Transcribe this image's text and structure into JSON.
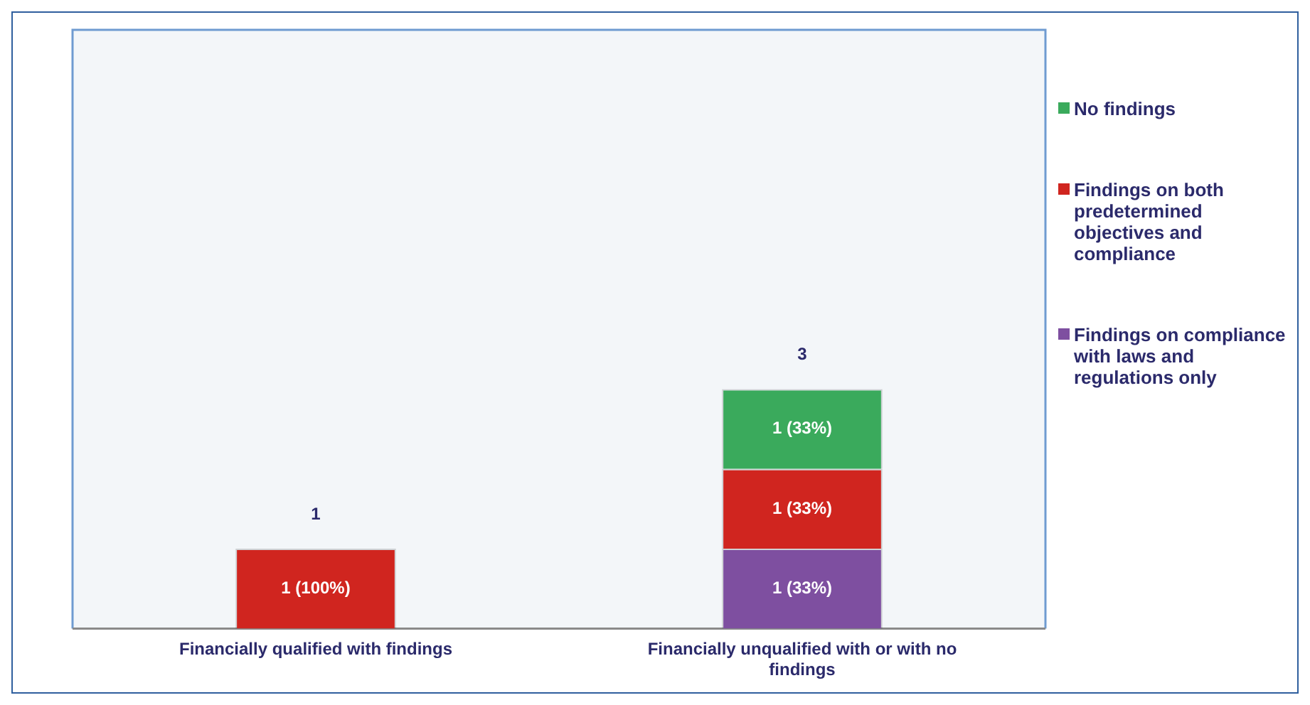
{
  "chart_data": {
    "type": "bar",
    "stacked": true,
    "categories": [
      "Financially qualified with findings",
      "Financially unqualified with or with no findings"
    ],
    "series": [
      {
        "name": "Findings on compliance with laws and regulations only",
        "color": "#7e4fa0",
        "values": [
          null,
          1
        ],
        "value_labels": [
          null,
          "1 (33%)"
        ]
      },
      {
        "name": "Findings on both predetermined objectives and compliance",
        "color": "#d0251f",
        "values": [
          1,
          1
        ],
        "value_labels": [
          "1 (100%)",
          "1 (33%)"
        ]
      },
      {
        "name": "No findings",
        "color": "#3aaa5c",
        "values": [
          null,
          1
        ],
        "value_labels": [
          null,
          "1 (33%)"
        ]
      }
    ],
    "totals": [
      "1",
      "3"
    ],
    "grid": false,
    "legend": "right",
    "tick_labels": "x"
  }
}
